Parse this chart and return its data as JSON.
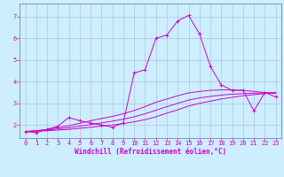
{
  "xlabel": "Windchill (Refroidissement éolien,°C)",
  "ylabel": "",
  "background_color": "#cceeff",
  "grid_color": "#aabbcc",
  "line_color": "#cc00cc",
  "xlim": [
    -0.5,
    23.5
  ],
  "ylim": [
    1.4,
    7.6
  ],
  "xticks": [
    0,
    1,
    2,
    3,
    4,
    5,
    6,
    7,
    8,
    9,
    10,
    11,
    12,
    13,
    14,
    15,
    16,
    17,
    18,
    19,
    20,
    21,
    22,
    23
  ],
  "yticks": [
    2,
    3,
    4,
    5,
    6,
    7
  ],
  "line1_x": [
    0,
    1,
    2,
    3,
    4,
    5,
    6,
    7,
    8,
    9,
    10,
    11,
    12,
    13,
    14,
    15,
    16,
    17,
    18,
    19,
    20,
    21,
    22,
    23
  ],
  "line1_y": [
    1.7,
    1.65,
    1.8,
    1.95,
    2.35,
    2.2,
    2.1,
    2.0,
    1.9,
    2.1,
    4.4,
    4.55,
    6.0,
    6.15,
    6.8,
    7.05,
    6.2,
    4.7,
    3.85,
    3.6,
    3.6,
    2.65,
    3.5,
    3.3
  ],
  "line2_x": [
    0,
    1,
    2,
    3,
    4,
    5,
    6,
    7,
    8,
    9,
    10,
    11,
    12,
    13,
    14,
    15,
    16,
    17,
    18,
    19,
    20,
    21,
    22,
    23
  ],
  "line2_y": [
    1.7,
    1.72,
    1.74,
    1.77,
    1.8,
    1.85,
    1.9,
    1.95,
    2.0,
    2.07,
    2.15,
    2.25,
    2.38,
    2.55,
    2.7,
    2.88,
    3.0,
    3.1,
    3.2,
    3.28,
    3.35,
    3.4,
    3.45,
    3.5
  ],
  "line3_x": [
    0,
    1,
    2,
    3,
    4,
    5,
    6,
    7,
    8,
    9,
    10,
    11,
    12,
    13,
    14,
    15,
    16,
    17,
    18,
    19,
    20,
    21,
    22,
    23
  ],
  "line3_y": [
    1.7,
    1.73,
    1.77,
    1.82,
    1.88,
    1.95,
    2.02,
    2.1,
    2.18,
    2.27,
    2.38,
    2.52,
    2.68,
    2.85,
    3.0,
    3.15,
    3.25,
    3.32,
    3.38,
    3.42,
    3.45,
    3.47,
    3.48,
    3.5
  ],
  "line4_x": [
    0,
    1,
    2,
    3,
    4,
    5,
    6,
    7,
    8,
    9,
    10,
    11,
    12,
    13,
    14,
    15,
    16,
    17,
    18,
    19,
    20,
    21,
    22,
    23
  ],
  "line4_y": [
    1.7,
    1.74,
    1.8,
    1.88,
    1.97,
    2.08,
    2.2,
    2.3,
    2.4,
    2.52,
    2.67,
    2.85,
    3.05,
    3.2,
    3.35,
    3.48,
    3.55,
    3.6,
    3.62,
    3.62,
    3.6,
    3.55,
    3.5,
    3.45
  ],
  "xlabel_fontsize": 5.5,
  "tick_fontsize": 5.0
}
